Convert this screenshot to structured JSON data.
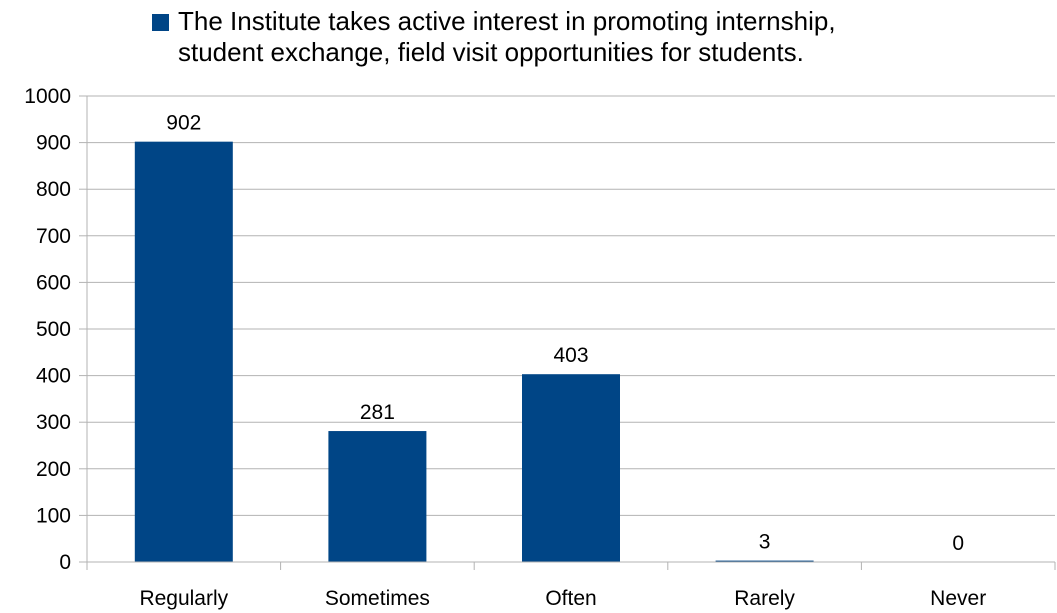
{
  "chart_data": {
    "type": "bar",
    "categories": [
      "Regularly",
      "Sometimes",
      "Often",
      "Rarely",
      "Never"
    ],
    "series": [
      {
        "name": "The Institute takes active interest in promoting internship,\nstudent exchange, field visit opportunities for students.",
        "values": [
          902,
          281,
          403,
          3,
          0
        ]
      }
    ],
    "data_labels": [
      "902",
      "281",
      "403",
      "3",
      "0"
    ],
    "ylim": [
      0,
      1000
    ],
    "yticks": [
      "0",
      "100",
      "200",
      "300",
      "400",
      "500",
      "600",
      "700",
      "800",
      "900",
      "1000"
    ],
    "xlabel": "",
    "ylabel": "",
    "grid": true,
    "legend_position": "top",
    "colors": {
      "bar": "#004586",
      "grid": "#b3b3b3"
    }
  }
}
